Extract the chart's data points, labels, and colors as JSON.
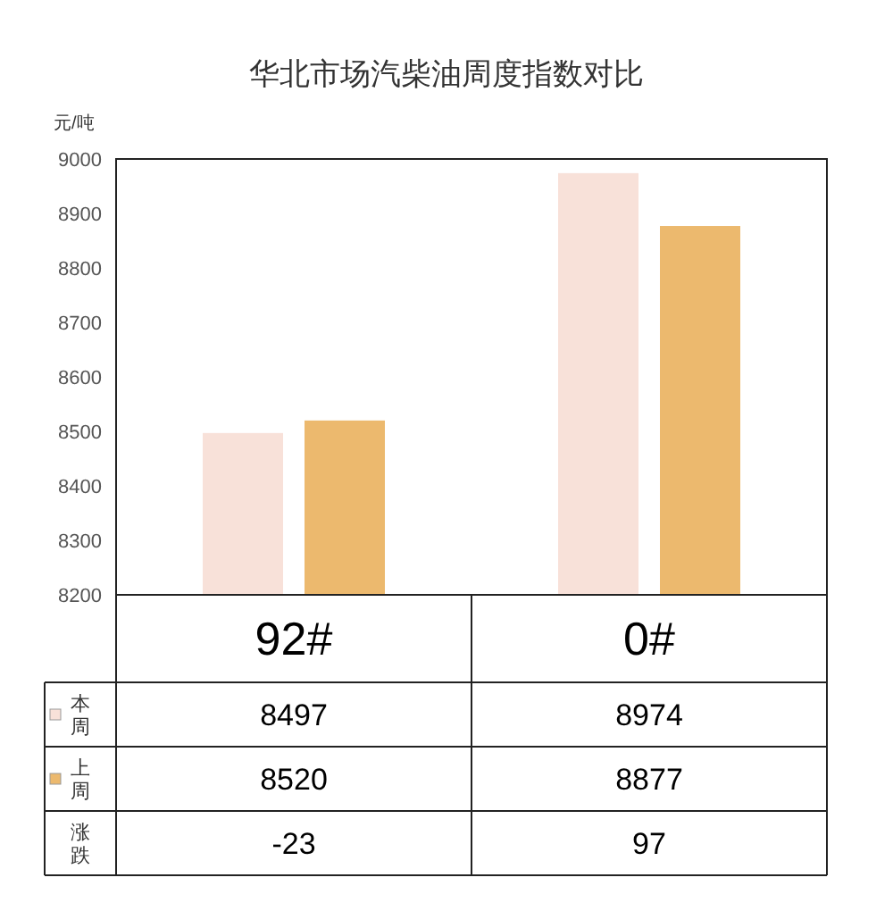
{
  "chart_data": {
    "type": "bar",
    "title": "华北市场汽柴油周度指数对比",
    "ylabel": "元/吨",
    "categories": [
      "92#",
      "0#"
    ],
    "series": [
      {
        "name": "本周",
        "color": "#f8e1d9",
        "values": [
          8497,
          8974
        ]
      },
      {
        "name": "上周",
        "color": "#ecb96e",
        "values": [
          8520,
          8877
        ]
      }
    ],
    "ylim": [
      8200,
      9000
    ],
    "yticks": [
      8200,
      8300,
      8400,
      8500,
      8600,
      8700,
      8800,
      8900,
      9000
    ],
    "data_labels": true,
    "grid": false,
    "legend": "bottom left",
    "annotations": [
      "涨跌",
      "-23",
      "97"
    ]
  }
}
